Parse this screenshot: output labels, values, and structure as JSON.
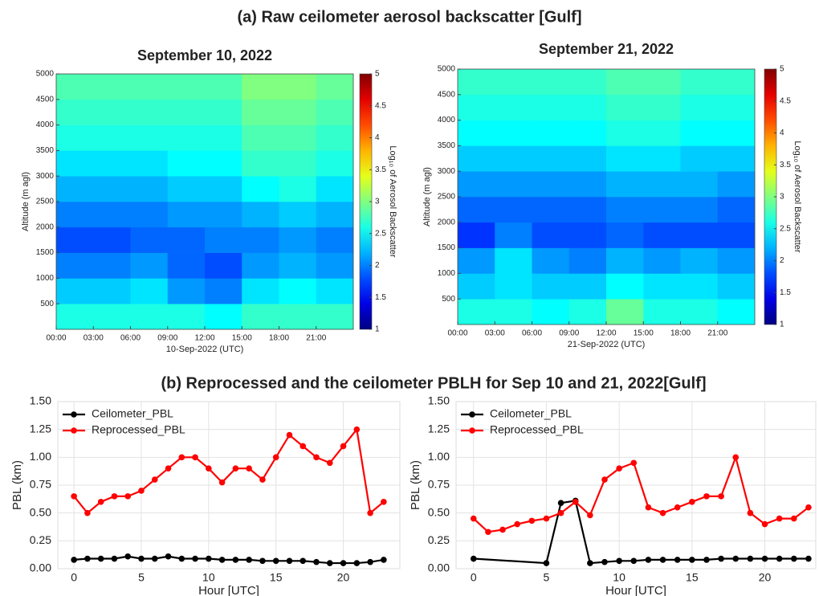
{
  "titles": [
    "(a) Raw ceilometer aerosol backscatter [Gulf]",
    "(b) Reprocessed and the ceilometer PBLH for Sep 10 and 21, 2022[Gulf]"
  ],
  "chart_data": [
    {
      "type": "heatmap",
      "title": "September 10, 2022",
      "xlabel": "10-Sep-2022  (UTC)",
      "ylabel": "Altitude (m agl)",
      "colorbar_label": "Log₁₀ of Aerosol Backscatter",
      "colormap": "jet",
      "xbins": [
        0,
        3,
        6,
        9,
        12,
        15,
        18,
        21,
        24
      ],
      "ybins": [
        0,
        500,
        1000,
        1500,
        2000,
        2500,
        3000,
        3500,
        4000,
        4500,
        5000
      ],
      "z": [
        [
          2.6,
          2.6,
          2.6,
          2.6,
          2.5,
          2.7,
          2.7,
          2.7
        ],
        [
          2.3,
          2.3,
          2.4,
          2.1,
          2.0,
          2.4,
          2.5,
          2.4
        ],
        [
          2.0,
          2.0,
          2.1,
          1.9,
          1.8,
          2.1,
          2.2,
          2.1
        ],
        [
          1.8,
          1.8,
          1.9,
          1.9,
          2.0,
          2.0,
          2.1,
          2.0
        ],
        [
          2.0,
          2.0,
          2.0,
          2.1,
          2.1,
          2.2,
          2.3,
          2.2
        ],
        [
          2.2,
          2.2,
          2.2,
          2.3,
          2.3,
          2.5,
          2.6,
          2.4
        ],
        [
          2.4,
          2.4,
          2.4,
          2.5,
          2.5,
          2.7,
          2.7,
          2.6
        ],
        [
          2.6,
          2.6,
          2.6,
          2.6,
          2.6,
          2.8,
          2.8,
          2.7
        ],
        [
          2.7,
          2.7,
          2.7,
          2.7,
          2.7,
          2.9,
          2.9,
          2.8
        ],
        [
          2.8,
          2.8,
          2.8,
          2.8,
          2.8,
          3.0,
          3.0,
          2.9
        ]
      ],
      "xlim": [
        0,
        24
      ],
      "ylim": [
        0,
        5000
      ],
      "xticks": [
        {
          "value": 0,
          "label": "00:00"
        },
        {
          "value": 3,
          "label": "03:00"
        },
        {
          "value": 6,
          "label": "06:00"
        },
        {
          "value": 9,
          "label": "09:00"
        },
        {
          "value": 12,
          "label": "12:00"
        },
        {
          "value": 15,
          "label": "15:00"
        },
        {
          "value": 18,
          "label": "18:00"
        },
        {
          "value": 21,
          "label": "21:00"
        }
      ],
      "yticks": [
        500,
        1000,
        1500,
        2000,
        2500,
        3000,
        3500,
        4000,
        4500,
        5000
      ],
      "clim": [
        1,
        5
      ],
      "cticks": [
        1,
        1.5,
        2,
        2.5,
        3,
        3.5,
        4,
        4.5,
        5
      ]
    },
    {
      "type": "heatmap",
      "title": "September 21, 2022",
      "xlabel": "21-Sep-2022  (UTC)",
      "ylabel": "Altitude (m agl)",
      "colorbar_label": "Log₁₀ of Aerosol Backscatter",
      "colormap": "jet",
      "xbins": [
        0,
        3,
        6,
        9,
        12,
        15,
        18,
        21,
        24
      ],
      "ybins": [
        0,
        500,
        1000,
        1500,
        2000,
        2500,
        3000,
        3500,
        4000,
        4500,
        5000
      ],
      "z": [
        [
          2.6,
          2.6,
          2.5,
          2.6,
          2.9,
          2.6,
          2.6,
          2.5
        ],
        [
          2.3,
          2.4,
          2.3,
          2.3,
          2.5,
          2.4,
          2.4,
          2.3
        ],
        [
          2.1,
          2.4,
          2.1,
          2.0,
          2.2,
          2.1,
          2.2,
          2.1
        ],
        [
          1.7,
          2.0,
          1.8,
          1.8,
          1.9,
          1.8,
          1.8,
          1.8
        ],
        [
          1.9,
          1.9,
          1.9,
          1.9,
          2.0,
          2.0,
          2.0,
          1.9
        ],
        [
          2.1,
          2.1,
          2.1,
          2.1,
          2.2,
          2.2,
          2.2,
          2.1
        ],
        [
          2.3,
          2.3,
          2.3,
          2.3,
          2.4,
          2.4,
          2.3,
          2.3
        ],
        [
          2.5,
          2.5,
          2.5,
          2.5,
          2.6,
          2.6,
          2.5,
          2.5
        ],
        [
          2.6,
          2.6,
          2.6,
          2.6,
          2.7,
          2.7,
          2.6,
          2.6
        ],
        [
          2.7,
          2.7,
          2.7,
          2.7,
          2.8,
          2.8,
          2.7,
          2.7
        ]
      ],
      "xlim": [
        0,
        24
      ],
      "ylim": [
        0,
        5000
      ],
      "xticks": [
        {
          "value": 0,
          "label": "00:00"
        },
        {
          "value": 3,
          "label": "03:00"
        },
        {
          "value": 6,
          "label": "06:00"
        },
        {
          "value": 9,
          "label": "09:00"
        },
        {
          "value": 12,
          "label": "12:00"
        },
        {
          "value": 15,
          "label": "15:00"
        },
        {
          "value": 18,
          "label": "18:00"
        },
        {
          "value": 21,
          "label": "21:00"
        }
      ],
      "yticks": [
        500,
        1000,
        1500,
        2000,
        2500,
        3000,
        3500,
        4000,
        4500,
        5000
      ],
      "clim": [
        1,
        5
      ],
      "cticks": [
        1,
        1.5,
        2,
        2.5,
        3,
        3.5,
        4,
        4.5,
        5
      ]
    },
    {
      "type": "line",
      "xlabel": "Hour [UTC]",
      "ylabel": "PBL (km)",
      "grid": true,
      "legend": "upper left",
      "xlim": [
        -1.2,
        24.2
      ],
      "ylim": [
        0,
        1.5
      ],
      "xticks": [
        0,
        5,
        10,
        15,
        20
      ],
      "yticks": [
        {
          "value": 0,
          "label": "0.00"
        },
        {
          "value": 0.25,
          "label": "0.25"
        },
        {
          "value": 0.5,
          "label": "0.50"
        },
        {
          "value": 0.75,
          "label": "0.75"
        },
        {
          "value": 1,
          "label": "1.00"
        },
        {
          "value": 1.25,
          "label": "1.25"
        },
        {
          "value": 1.5,
          "label": "1.50"
        }
      ],
      "series": [
        {
          "name": "Ceilometer_PBL",
          "color": "#000000",
          "x": [
            0,
            1,
            2,
            3,
            4,
            5,
            6,
            7,
            8,
            9,
            10,
            11,
            12,
            13,
            14,
            15,
            16,
            17,
            18,
            19,
            20,
            21,
            22,
            23
          ],
          "values": [
            0.08,
            0.09,
            0.09,
            0.09,
            0.11,
            0.09,
            0.09,
            0.11,
            0.09,
            0.09,
            0.09,
            0.08,
            0.08,
            0.08,
            0.07,
            0.07,
            0.07,
            0.07,
            0.06,
            0.05,
            0.05,
            0.05,
            0.06,
            0.08
          ]
        },
        {
          "name": "Reprocessed_PBL",
          "color": "#ff0000",
          "x": [
            0,
            1,
            2,
            3,
            4,
            5,
            6,
            7,
            8,
            9,
            10,
            11,
            12,
            13,
            14,
            15,
            16,
            17,
            18,
            19,
            20,
            21,
            22,
            23
          ],
          "values": [
            0.65,
            0.5,
            0.6,
            0.65,
            0.65,
            0.7,
            0.8,
            0.9,
            1.0,
            1.0,
            0.9,
            0.775,
            0.9,
            0.9,
            0.8,
            1.0,
            1.2,
            1.1,
            1.0,
            0.95,
            1.1,
            1.25,
            0.5,
            0.6
          ]
        }
      ]
    },
    {
      "type": "line",
      "xlabel": "Hour [UTC]",
      "ylabel": "PBL (km)",
      "grid": true,
      "legend": "upper left",
      "xlim": [
        -1.2,
        23.5
      ],
      "ylim": [
        0,
        1.5
      ],
      "xticks": [
        0,
        5,
        10,
        15,
        20
      ],
      "yticks": [
        {
          "value": 0,
          "label": "0.00"
        },
        {
          "value": 0.25,
          "label": "0.25"
        },
        {
          "value": 0.5,
          "label": "0.50"
        },
        {
          "value": 0.75,
          "label": "0.75"
        },
        {
          "value": 1,
          "label": "1.00"
        },
        {
          "value": 1.25,
          "label": "1.25"
        },
        {
          "value": 1.5,
          "label": "1.50"
        }
      ],
      "series": [
        {
          "name": "Ceilometer_PBL",
          "color": "#000000",
          "x": [
            0,
            5,
            6,
            7,
            8,
            9,
            10,
            11,
            12,
            13,
            14,
            15,
            16,
            17,
            18,
            19,
            20,
            21,
            22,
            23
          ],
          "values": [
            0.09,
            0.05,
            0.59,
            0.61,
            0.05,
            0.06,
            0.07,
            0.07,
            0.08,
            0.08,
            0.08,
            0.08,
            0.08,
            0.09,
            0.09,
            0.09,
            0.09,
            0.09,
            0.09,
            0.09
          ]
        },
        {
          "name": "Reprocessed_PBL",
          "color": "#ff0000",
          "x": [
            0,
            1,
            2,
            3,
            4,
            5,
            6,
            7,
            8,
            9,
            10,
            11,
            12,
            13,
            14,
            15,
            16,
            17,
            18,
            19,
            20,
            21,
            22,
            23
          ],
          "values": [
            0.45,
            0.33,
            0.35,
            0.4,
            0.43,
            0.45,
            0.5,
            0.6,
            0.48,
            0.8,
            0.9,
            0.95,
            0.55,
            0.5,
            0.55,
            0.6,
            0.65,
            0.65,
            1.0,
            0.5,
            0.4,
            0.45,
            0.45,
            0.55
          ]
        }
      ]
    }
  ]
}
